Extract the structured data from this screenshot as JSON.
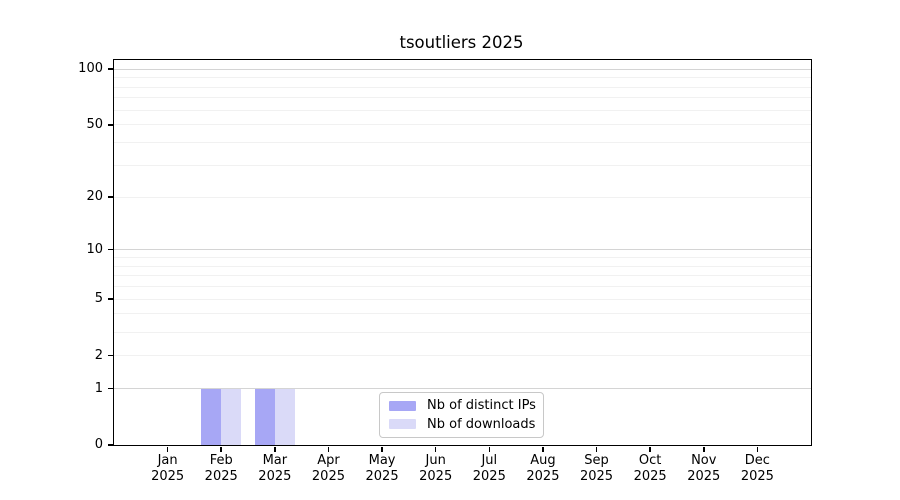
{
  "chart_data": {
    "type": "bar",
    "title": "tsoutliers 2025",
    "categories": [
      "Jan",
      "Feb",
      "Mar",
      "Apr",
      "May",
      "Jun",
      "Jul",
      "Aug",
      "Sep",
      "Oct",
      "Nov",
      "Dec"
    ],
    "year_label": "2025",
    "series": [
      {
        "name": "Nb of distinct IPs",
        "color": "#a7a7f5",
        "values": [
          0,
          1,
          1,
          0,
          0,
          0,
          0,
          0,
          0,
          0,
          0,
          0
        ]
      },
      {
        "name": "Nb of downloads",
        "color": "#dadaf8",
        "values": [
          0,
          1,
          1,
          0,
          0,
          0,
          0,
          0,
          0,
          0,
          0,
          0
        ]
      }
    ],
    "y_scale": "log1p",
    "ylim": [
      0,
      112
    ],
    "y_axis_ticks": [
      0,
      1,
      2,
      5,
      10,
      20,
      50,
      100
    ],
    "y_gridlines_major": [
      1,
      10,
      100
    ],
    "y_gridlines_minor": [
      2,
      3,
      4,
      5,
      6,
      7,
      8,
      9,
      20,
      30,
      40,
      50,
      60,
      70,
      80,
      90
    ],
    "grid": true,
    "legend": {
      "position": "inside-bottom-center",
      "entries": [
        "Nb of distinct IPs",
        "Nb of downloads"
      ]
    },
    "colors": {
      "background": "#ffffff",
      "axis": "#000000",
      "text": "#000000",
      "grid_major": "#d4d4d4",
      "grid_minor": "#f1f1f1",
      "legend_border": "#c8c8c8"
    }
  }
}
